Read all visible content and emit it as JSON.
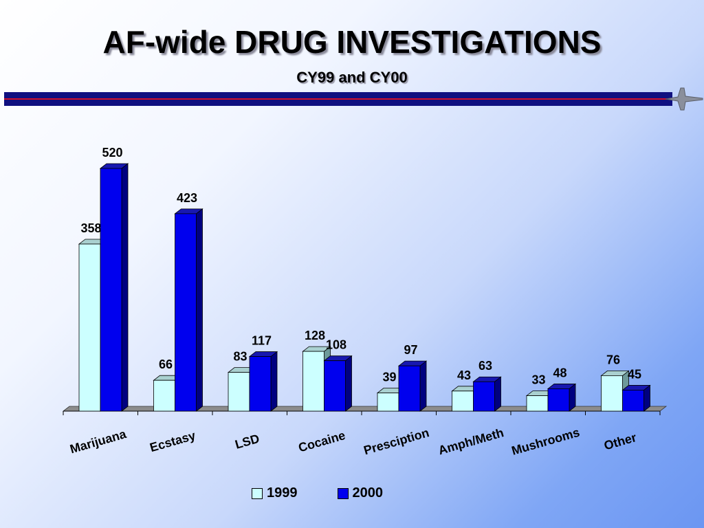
{
  "chart_data": {
    "type": "bar",
    "title": "AF-wide DRUG INVESTIGATIONS",
    "subtitle": "CY99 and CY00",
    "categories": [
      "Marijuana",
      "Ecstasy",
      "LSD",
      "Cocaine",
      "Presciption",
      "Amph/Meth",
      "Mushrooms",
      "Other"
    ],
    "series": [
      {
        "name": "1999",
        "values": [
          358,
          66,
          83,
          128,
          39,
          43,
          33,
          76
        ],
        "color": "#ccffff"
      },
      {
        "name": "2000",
        "values": [
          520,
          423,
          117,
          108,
          97,
          63,
          48,
          45
        ],
        "color": "#0000ee"
      }
    ],
    "ylim": [
      0,
      520
    ],
    "grid": false,
    "three_d": true,
    "legend_position": "bottom"
  }
}
